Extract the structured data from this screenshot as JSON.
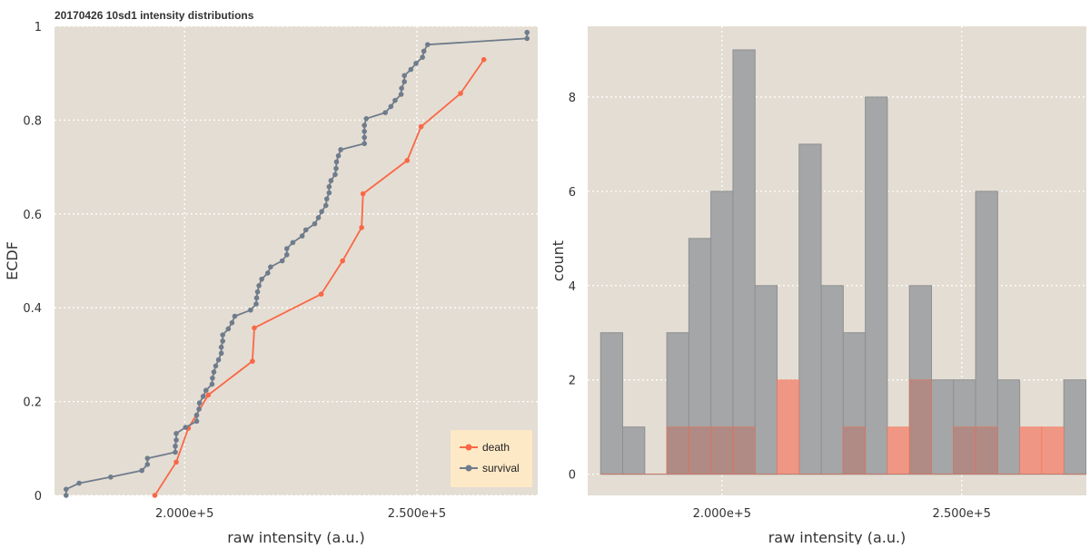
{
  "title": "20170426 10sd1 intensity distributions",
  "colors": {
    "panel_bg": "#e4ddd3",
    "grid": "#ffffff",
    "death": "#f96846",
    "survival": "#6f7c8c",
    "hist_survival_fill": "#a4a6a7",
    "hist_survival_stroke": "#8e9091",
    "hist_death_fill": "#b08a84",
    "hist_death_only_fill": "#ef9784",
    "legend_bg": "#fde9c6"
  },
  "chart_data": [
    {
      "type": "line",
      "title": "20170426 10sd1 intensity distributions",
      "xlabel": "raw intensity (a.u.)",
      "ylabel": "ECDF",
      "xlim": [
        172000,
        276000
      ],
      "ylim": [
        0,
        1
      ],
      "xticks": [
        200000,
        250000
      ],
      "xtick_labels": [
        "2.000e+5",
        "2.500e+5"
      ],
      "yticks": [
        0,
        0.2,
        0.4,
        0.6,
        0.8,
        1
      ],
      "ytick_labels": [
        "0",
        "0.2",
        "0.4",
        "0.6",
        "0.8",
        "1"
      ],
      "grid": true,
      "legend": {
        "position": "bottom-right",
        "entries": [
          "death",
          "survival"
        ]
      },
      "series": [
        {
          "name": "death",
          "x": [
            193600,
            198200,
            200800,
            205100,
            214600,
            215000,
            229400,
            234000,
            238100,
            238400,
            247900,
            250900,
            259400,
            264400
          ],
          "y": [
            0,
            0.071,
            0.143,
            0.214,
            0.286,
            0.357,
            0.429,
            0.5,
            0.571,
            0.643,
            0.714,
            0.786,
            0.857,
            0.929
          ]
        },
        {
          "name": "survival",
          "x": [
            174500,
            174500,
            177300,
            184100,
            190800,
            192000,
            192000,
            198000,
            198000,
            198200,
            198200,
            200200,
            202600,
            202600,
            203100,
            203200,
            204000,
            204600,
            205900,
            206000,
            206300,
            206700,
            207300,
            207900,
            207900,
            208200,
            208200,
            209400,
            210200,
            210800,
            214200,
            215400,
            215500,
            215700,
            216000,
            216600,
            217900,
            218500,
            221000,
            222000,
            222000,
            223300,
            225300,
            226100,
            228000,
            228800,
            229500,
            230400,
            230600,
            231100,
            231100,
            231500,
            232400,
            232600,
            232700,
            233100,
            233600,
            238700,
            238700,
            238700,
            238700,
            239100,
            243200,
            244400,
            245300,
            246600,
            246700,
            247300,
            247300,
            248700,
            249800,
            251200,
            251500,
            252300,
            273700,
            273700
          ],
          "y": [
            0,
            0.013,
            0.026,
            0.039,
            0.053,
            0.066,
            0.079,
            0.092,
            0.105,
            0.118,
            0.132,
            0.145,
            0.158,
            0.171,
            0.184,
            0.197,
            0.211,
            0.224,
            0.237,
            0.25,
            0.263,
            0.276,
            0.289,
            0.303,
            0.316,
            0.329,
            0.342,
            0.355,
            0.368,
            0.382,
            0.395,
            0.408,
            0.421,
            0.434,
            0.447,
            0.461,
            0.474,
            0.487,
            0.5,
            0.513,
            0.526,
            0.539,
            0.553,
            0.566,
            0.579,
            0.592,
            0.605,
            0.618,
            0.632,
            0.645,
            0.658,
            0.671,
            0.684,
            0.697,
            0.711,
            0.724,
            0.737,
            0.75,
            0.763,
            0.776,
            0.789,
            0.803,
            0.816,
            0.829,
            0.842,
            0.855,
            0.868,
            0.882,
            0.895,
            0.908,
            0.921,
            0.934,
            0.947,
            0.961,
            0.974,
            0.987
          ]
        }
      ]
    },
    {
      "type": "bar",
      "subtype": "histogram",
      "xlabel": "raw intensity (a.u.)",
      "ylabel": "count",
      "xlim": [
        172000,
        276000
      ],
      "ylim": [
        -0.45,
        9.5
      ],
      "xticks": [
        200000,
        250000
      ],
      "xtick_labels": [
        "2.000e+5",
        "2.500e+5"
      ],
      "yticks": [
        0,
        2,
        4,
        6,
        8
      ],
      "ytick_labels": [
        "0",
        "2",
        "4",
        "6",
        "8"
      ],
      "grid": true,
      "overlay": true,
      "bin_edges": [
        174700,
        179300,
        183900,
        188500,
        193100,
        197700,
        202300,
        206900,
        211500,
        216100,
        220700,
        225300,
        229900,
        234500,
        239100,
        243700,
        248300,
        252900,
        257500,
        262100,
        266700,
        271300,
        275900
      ],
      "series": [
        {
          "name": "survival",
          "values": [
            3,
            1,
            0,
            3,
            5,
            6,
            9,
            4,
            0,
            7,
            4,
            3,
            8,
            0,
            4,
            2,
            2,
            6,
            2,
            0,
            0,
            2
          ]
        },
        {
          "name": "death",
          "values": [
            0,
            0,
            0,
            1,
            1,
            1,
            1,
            0,
            2,
            0,
            0,
            1,
            0,
            1,
            2,
            0,
            1,
            1,
            0,
            1,
            1,
            0
          ]
        }
      ]
    }
  ]
}
